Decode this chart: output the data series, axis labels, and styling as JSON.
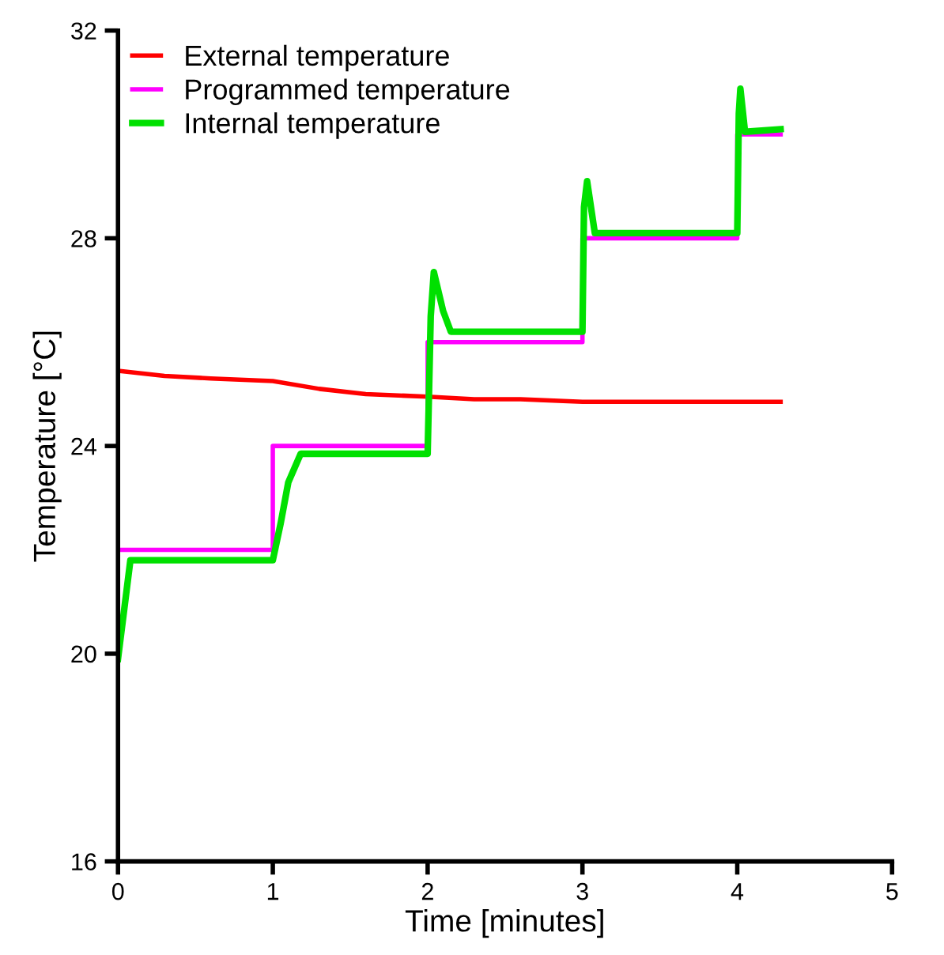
{
  "chart_data": {
    "type": "line",
    "xlabel": "Time [minutes]",
    "ylabel": "Temperature [°C]",
    "xlim": [
      0,
      5
    ],
    "ylim": [
      16,
      32
    ],
    "xticks": [
      0,
      1,
      2,
      3,
      4,
      5
    ],
    "yticks": [
      16,
      20,
      24,
      28,
      32
    ],
    "grid": false,
    "legend": "top left",
    "marker": "none",
    "line_style": "solid",
    "series": [
      {
        "name": "External temperature",
        "color": "#ff0000",
        "x": [
          0,
          0.3,
          0.6,
          1.0,
          1.3,
          1.6,
          2.0,
          2.3,
          2.6,
          3.0,
          3.4,
          3.8,
          4.28
        ],
        "values": [
          25.45,
          25.35,
          25.3,
          25.25,
          25.1,
          25.0,
          24.95,
          24.9,
          24.9,
          24.85,
          24.85,
          24.85,
          24.85
        ]
      },
      {
        "name": "Programmed temperature",
        "color": "#ff00ff",
        "x": [
          0,
          1,
          1,
          2,
          2,
          3,
          3,
          4,
          4,
          4.28
        ],
        "values": [
          22,
          22,
          24,
          24,
          26,
          26,
          28,
          28,
          30,
          30
        ]
      },
      {
        "name": "Internal temperature",
        "color": "#00e000",
        "x": [
          0,
          0.08,
          1.0,
          1.05,
          1.1,
          1.18,
          2.0,
          2.02,
          2.04,
          2.1,
          2.15,
          3.0,
          3.01,
          3.03,
          3.08,
          4.0,
          4.01,
          4.02,
          4.05,
          4.28
        ],
        "values": [
          19.9,
          21.8,
          21.8,
          22.5,
          23.3,
          23.85,
          23.85,
          26.5,
          27.35,
          26.6,
          26.2,
          26.2,
          28.6,
          29.1,
          28.1,
          28.1,
          30.4,
          30.88,
          30.05,
          30.1
        ]
      }
    ]
  }
}
